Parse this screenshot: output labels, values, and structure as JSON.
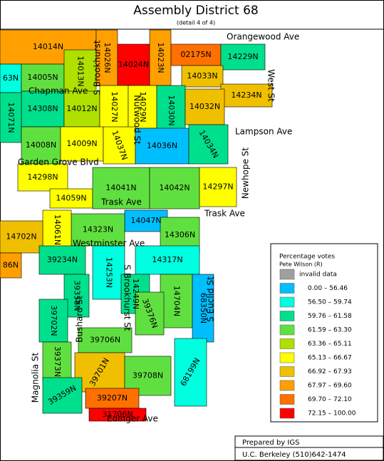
{
  "header": {
    "title": "Assembly District 68",
    "subtitle": "(detail 4 of 4)"
  },
  "precincts": [
    {
      "label": "14014N",
      "color": "#ffa000"
    },
    {
      "label": "14026N",
      "color": "#ffa000"
    },
    {
      "label": "14024N",
      "color": "#ff0000"
    },
    {
      "label": "14023N",
      "color": "#ffa000"
    },
    {
      "label": "02175N",
      "color": "#ff7000"
    },
    {
      "label": "14229N",
      "color": "#00e08c"
    },
    {
      "label": "63N",
      "color": "#00ffe0"
    },
    {
      "label": "14005N",
      "color": "#60e040"
    },
    {
      "label": "14013N",
      "color": "#b0e000"
    },
    {
      "label": "14033N",
      "color": "#f0c000"
    },
    {
      "label": "14234N",
      "color": "#f0c000"
    },
    {
      "label": "14308N",
      "color": "#00e08c"
    },
    {
      "label": "14012N",
      "color": "#b0e000"
    },
    {
      "label": "14027N",
      "color": "#ffff00"
    },
    {
      "label": "14029N",
      "color": "#ffff00"
    },
    {
      "label": "14030N",
      "color": "#00e08c"
    },
    {
      "label": "14032N",
      "color": "#f0c000"
    },
    {
      "label": "14071N",
      "color": "#00e08c"
    },
    {
      "label": "14008N",
      "color": "#60e040"
    },
    {
      "label": "14009N",
      "color": "#ffff00"
    },
    {
      "label": "14037N",
      "color": "#ffff00"
    },
    {
      "label": "14036N",
      "color": "#00bfff"
    },
    {
      "label": "14034N",
      "color": "#00e08c"
    },
    {
      "label": "14298N",
      "color": "#ffff00"
    },
    {
      "label": "14059N",
      "color": "#ffff00"
    },
    {
      "label": "14041N",
      "color": "#60e040"
    },
    {
      "label": "14042N",
      "color": "#60e040"
    },
    {
      "label": "14297N",
      "color": "#ffff00"
    },
    {
      "label": "14047N",
      "color": "#00bfff"
    },
    {
      "label": "14323N",
      "color": "#60e040"
    },
    {
      "label": "14306N",
      "color": "#60e040"
    },
    {
      "label": "14061N",
      "color": "#ffff00"
    },
    {
      "label": "14702N",
      "color": "#f0c000"
    },
    {
      "label": "39234N",
      "color": "#00e08c"
    },
    {
      "label": "14253N",
      "color": "#00ffe0"
    },
    {
      "label": "14317N",
      "color": "#00ffe0"
    },
    {
      "label": "14249N",
      "color": "#00e08c"
    },
    {
      "label": "14704N",
      "color": "#60e040"
    },
    {
      "label": "68350N",
      "color": "#00bfff"
    },
    {
      "label": "39358N",
      "color": "#00e08c"
    },
    {
      "label": "39376N",
      "color": "#60e040"
    },
    {
      "label": "39702N",
      "color": "#00e08c"
    },
    {
      "label": "39706N",
      "color": "#60e040"
    },
    {
      "label": "39373N",
      "color": "#60e040"
    },
    {
      "label": "39701N",
      "color": "#f0c000"
    },
    {
      "label": "39708N",
      "color": "#60e040"
    },
    {
      "label": "68199N",
      "color": "#00ffe0"
    },
    {
      "label": "39359N",
      "color": "#00e08c"
    },
    {
      "label": "39207N",
      "color": "#ff7000"
    },
    {
      "label": "31706N",
      "color": "#ff0000"
    },
    {
      "label": "86N",
      "color": "#ffa000"
    }
  ],
  "streets": [
    "Orangewood Ave",
    "West St",
    "Chapman Ave",
    "S Brookhurst",
    "Lampson Ave",
    "Newhope St",
    "Garden Grove Blvd",
    "Nutwood St",
    "Trask Ave",
    "Trask Ave",
    "Westminster Ave",
    "S Euclid St",
    "Bushard St",
    "S Brookhurst St",
    "Magnolia St",
    "Edinger Ave"
  ],
  "legend": {
    "title": "Percentage votes",
    "subtitle": "Pete Wilson (R)",
    "items": [
      {
        "label": "invalid data",
        "color": "#a0a0a0"
      },
      {
        "label": "0.00 – 56.46",
        "color": "#00bfff"
      },
      {
        "label": "56.50 – 59.74",
        "color": "#00ffe0"
      },
      {
        "label": "59.76 – 61.58",
        "color": "#00e08c"
      },
      {
        "label": "61.59 – 63.30",
        "color": "#60e040"
      },
      {
        "label": "63.36 – 65.11",
        "color": "#b0e000"
      },
      {
        "label": "65.13 – 66.67",
        "color": "#ffff00"
      },
      {
        "label": "66.92 – 67.93",
        "color": "#f0c000"
      },
      {
        "label": "67.97 – 69.60",
        "color": "#ffa000"
      },
      {
        "label": "69.70 – 72.10",
        "color": "#ff7000"
      },
      {
        "label": "72.15 – 100.00",
        "color": "#ff0000"
      }
    ]
  },
  "credit": {
    "line1": "Prepared by IGS",
    "line2": "U.C. Berkeley (510)642-1474"
  }
}
